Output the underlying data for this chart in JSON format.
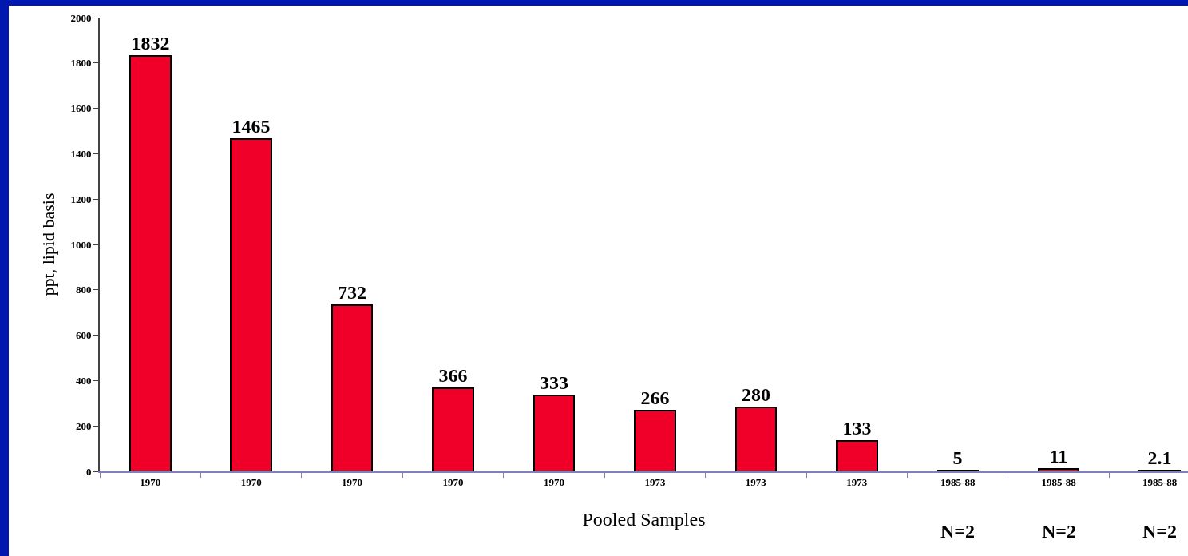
{
  "chart_data": {
    "type": "bar",
    "xlabel": "Pooled Samples",
    "ylabel": "ppt, lipid basis",
    "categories": [
      "1970",
      "1970",
      "1970",
      "1970",
      "1970",
      "1973",
      "1973",
      "1973",
      "1985-88",
      "1985-88",
      "1985-88"
    ],
    "values": [
      1832,
      1465,
      732,
      366,
      333,
      266,
      280,
      133,
      5,
      11,
      2.1
    ],
    "color": "#f00028",
    "data_labels": true,
    "ylim": [
      0,
      2000
    ],
    "yticks": [
      0,
      200,
      400,
      600,
      800,
      1000,
      1200,
      1400,
      1600,
      1800,
      2000
    ],
    "grid": false,
    "legend": false,
    "annotations": [
      "N=2",
      "N=2",
      "N=2"
    ]
  }
}
